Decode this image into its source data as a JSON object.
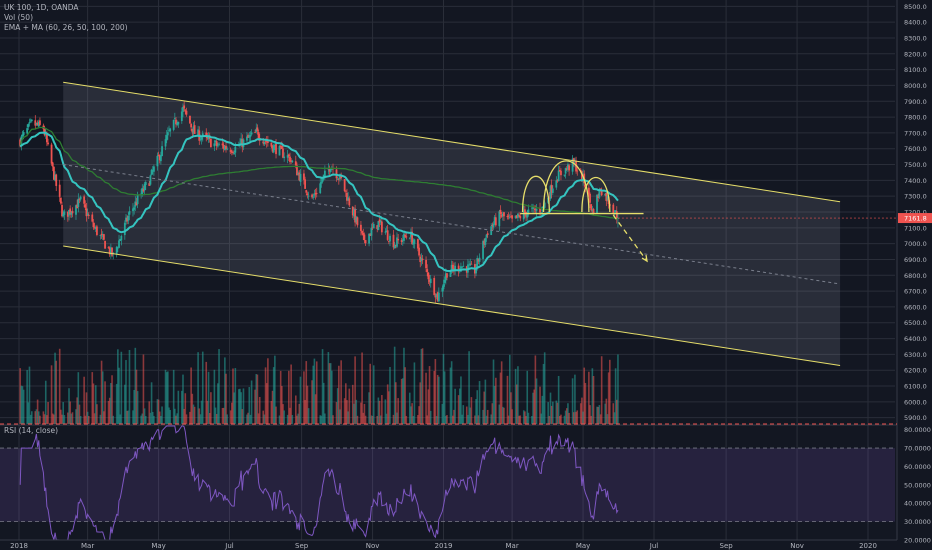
{
  "header": {
    "symbol_line": "UK 100, 1D, OANDA",
    "volume_line": "Vol (50)",
    "ma_line": "EMA + MA (60, 26, 50, 100, 200)"
  },
  "rsi_label": "RSI (14, close)",
  "colors": {
    "background": "#131722",
    "grid": "#2a2e39",
    "up": "#26a69a",
    "down": "#ef5350",
    "ema": "#35c4c0",
    "ma200": "#2e7d32",
    "channel": "#e6de6a",
    "rsi": "#7e57c2",
    "price_tag": "#ef5350"
  },
  "chart_data": [
    {
      "type": "candlestick",
      "title": "UK 100, 1D, OANDA",
      "x_tick_labels": [
        "2018",
        "Mar",
        "May",
        "Jul",
        "Sep",
        "Nov",
        "2019",
        "Mar",
        "May",
        "Jul",
        "Sep",
        "Nov",
        "2020"
      ],
      "y_tick_labels": [
        "8500.0",
        "8400.0",
        "8300.0",
        "8200.0",
        "8100.0",
        "8000.0",
        "7900.0",
        "7800.0",
        "7700.0",
        "7600.0",
        "7500.0",
        "7400.0",
        "7300.0",
        "7200.0",
        "7100.0",
        "7000.0",
        "6900.0",
        "6800.0",
        "6700.0",
        "6600.0",
        "6500.0",
        "6400.0",
        "6300.0",
        "6200.0",
        "6100.0",
        "6000.0",
        "5900.0"
      ],
      "ylim": [
        5860,
        8540
      ],
      "last_price_label": "7161.8",
      "close_path": [
        {
          "date": "2018-01-02",
          "close": 7650
        },
        {
          "date": "2018-01-12",
          "close": 7760
        },
        {
          "date": "2018-01-22",
          "close": 7730
        },
        {
          "date": "2018-02-08",
          "close": 7170
        },
        {
          "date": "2018-02-23",
          "close": 7270
        },
        {
          "date": "2018-03-05",
          "close": 7120
        },
        {
          "date": "2018-03-23",
          "close": 6920
        },
        {
          "date": "2018-04-06",
          "close": 7190
        },
        {
          "date": "2018-04-23",
          "close": 7400
        },
        {
          "date": "2018-05-10",
          "close": 7700
        },
        {
          "date": "2018-05-22",
          "close": 7850
        },
        {
          "date": "2018-06-01",
          "close": 7700
        },
        {
          "date": "2018-06-20",
          "close": 7620
        },
        {
          "date": "2018-07-05",
          "close": 7600
        },
        {
          "date": "2018-07-24",
          "close": 7700
        },
        {
          "date": "2018-08-06",
          "close": 7620
        },
        {
          "date": "2018-08-22",
          "close": 7540
        },
        {
          "date": "2018-09-10",
          "close": 7280
        },
        {
          "date": "2018-09-26",
          "close": 7500
        },
        {
          "date": "2018-10-05",
          "close": 7400
        },
        {
          "date": "2018-10-24",
          "close": 7020
        },
        {
          "date": "2018-11-06",
          "close": 7130
        },
        {
          "date": "2018-11-20",
          "close": 7000
        },
        {
          "date": "2018-12-03",
          "close": 7060
        },
        {
          "date": "2018-12-14",
          "close": 6880
        },
        {
          "date": "2018-12-27",
          "close": 6660
        },
        {
          "date": "2019-01-04",
          "close": 6820
        },
        {
          "date": "2019-01-16",
          "close": 6860
        },
        {
          "date": "2019-01-28",
          "close": 6830
        },
        {
          "date": "2019-02-08",
          "close": 7080
        },
        {
          "date": "2019-02-19",
          "close": 7180
        },
        {
          "date": "2019-03-01",
          "close": 7140
        },
        {
          "date": "2019-03-14",
          "close": 7200
        },
        {
          "date": "2019-03-27",
          "close": 7220
        },
        {
          "date": "2019-04-08",
          "close": 7420
        },
        {
          "date": "2019-04-23",
          "close": 7510
        },
        {
          "date": "2019-05-03",
          "close": 7380
        },
        {
          "date": "2019-05-09",
          "close": 7200
        },
        {
          "date": "2019-05-16",
          "close": 7350
        },
        {
          "date": "2019-05-24",
          "close": 7260
        },
        {
          "date": "2019-05-31",
          "close": 7161.8
        }
      ],
      "channel": {
        "upper": [
          {
            "date": "2018-02-08",
            "price": 8020
          },
          {
            "date": "2019-12-08",
            "price": 7265
          }
        ],
        "lower": [
          {
            "date": "2018-02-08",
            "price": 6985
          },
          {
            "date": "2019-12-08",
            "price": 6230
          }
        ],
        "midline": [
          {
            "date": "2018-02-08",
            "price": 7500
          },
          {
            "date": "2019-12-08",
            "price": 6745
          }
        ]
      },
      "neckline": [
        {
          "date": "2019-03-08",
          "price": 7190
        },
        {
          "date": "2019-06-22",
          "price": 7190
        }
      ],
      "projection": [
        {
          "date": "2019-05-27",
          "price": 7180
        },
        {
          "date": "2019-06-25",
          "price": 6890
        }
      ]
    },
    {
      "type": "bar",
      "title": "Vol (50)"
    },
    {
      "type": "line",
      "title": "RSI (14, close)",
      "y_tick_labels": [
        "80.0000",
        "70.0000",
        "60.0000",
        "50.0000",
        "40.0000",
        "30.0000",
        "20.0000"
      ],
      "ylim": [
        20,
        82
      ],
      "bands": [
        30,
        70
      ]
    }
  ]
}
